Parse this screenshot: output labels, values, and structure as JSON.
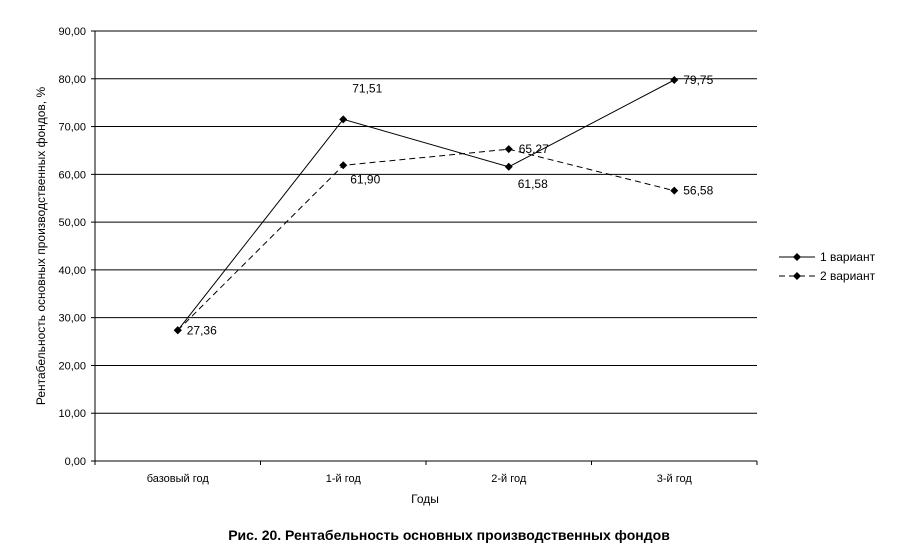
{
  "caption": "Рис. 20. Рентабельность основных производственных фондов",
  "chart_data": {
    "type": "line",
    "title": "",
    "xlabel": "Годы",
    "ylabel": "Рентабельность основных производственных фондов, %",
    "categories": [
      "базовый год",
      "1-й год",
      "2-й год",
      "3-й год"
    ],
    "ylim": [
      0,
      90
    ],
    "yticks": [
      "0,00",
      "10,00",
      "20,00",
      "30,00",
      "40,00",
      "50,00",
      "60,00",
      "70,00",
      "80,00",
      "90,00"
    ],
    "grid": true,
    "legend": "right",
    "series": [
      {
        "name": "1 вариант",
        "style": "solid",
        "color": "#000000",
        "values": [
          27.36,
          71.51,
          61.58,
          79.75
        ],
        "labels": [
          "27,36",
          "71,51",
          "61,58",
          "79,75"
        ]
      },
      {
        "name": "2 вариант",
        "style": "dashed",
        "color": "#000000",
        "values": [
          27.36,
          61.9,
          65.27,
          56.58
        ],
        "labels": [
          "",
          "61,90",
          "65,27",
          "56,58"
        ]
      }
    ]
  }
}
